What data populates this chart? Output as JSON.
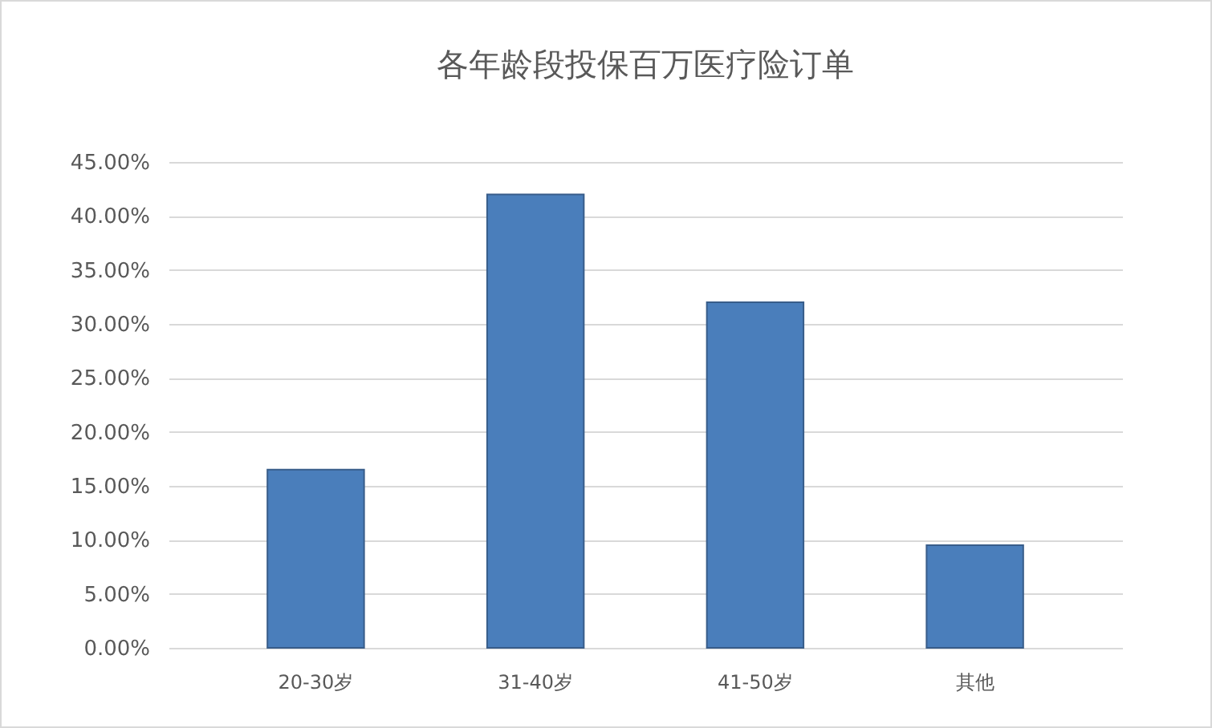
{
  "chart_data": {
    "type": "bar",
    "title": "各年龄段投保百万医疗险订单",
    "categories": [
      "20-30岁",
      "31-40岁",
      "41-50岁",
      "其他"
    ],
    "values": [
      16.5,
      42,
      32,
      9.5
    ],
    "color": "#4a7ebb",
    "ylim": [
      0,
      45
    ],
    "yticks": [
      {
        "value": 0,
        "label": "0.00%"
      },
      {
        "value": 5,
        "label": "5.00%"
      },
      {
        "value": 10,
        "label": "10.00%"
      },
      {
        "value": 15,
        "label": "15.00%"
      },
      {
        "value": 20,
        "label": "20.00%"
      },
      {
        "value": 25,
        "label": "25.00%"
      },
      {
        "value": 30,
        "label": "30.00%"
      },
      {
        "value": 35,
        "label": "35.00%"
      },
      {
        "value": 40,
        "label": "40.00%"
      },
      {
        "value": 45,
        "label": "45.00%"
      }
    ],
    "grid": true
  }
}
